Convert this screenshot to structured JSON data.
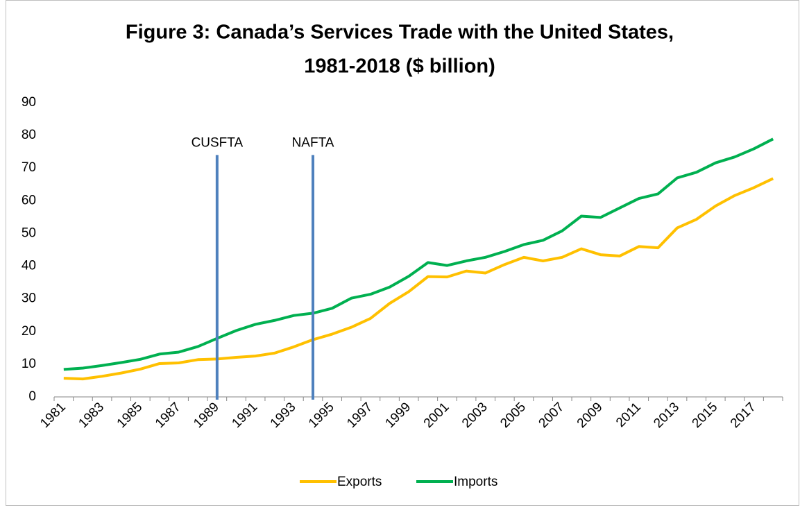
{
  "chart_data": {
    "type": "line",
    "title": [
      "Figure 3: Canada’s Services Trade with the United States,",
      "1981-2018 ($ billion)"
    ],
    "categories": [
      "1981",
      null,
      "1983",
      null,
      "1985",
      null,
      "1987",
      null,
      "1989",
      null,
      "1991",
      null,
      "1993",
      null,
      "1995",
      null,
      "1997",
      null,
      "1999",
      null,
      "2001",
      null,
      "2003",
      null,
      "2005",
      null,
      "2007",
      null,
      "2009",
      null,
      "2011",
      null,
      "2013",
      null,
      "2015",
      null,
      "2017",
      null
    ],
    "series": [
      {
        "name": "Exports",
        "color": "#ffc000",
        "values": [
          5.7,
          5.5,
          6.3,
          7.3,
          8.5,
          10.2,
          10.4,
          11.4,
          11.6,
          12.1,
          12.5,
          13.4,
          15.3,
          17.5,
          19.2,
          21.3,
          24.0,
          28.6,
          32.2,
          36.8,
          36.7,
          38.5,
          37.9,
          40.5,
          42.7,
          41.6,
          42.7,
          45.3,
          43.5,
          43.1,
          46.0,
          45.6,
          51.7,
          54.3,
          58.4,
          61.6,
          64.0,
          66.8
        ]
      },
      {
        "name": "Imports",
        "color": "#00b050",
        "values": [
          8.4,
          8.8,
          9.6,
          10.5,
          11.5,
          13.1,
          13.7,
          15.4,
          17.9,
          20.3,
          22.2,
          23.4,
          24.9,
          25.6,
          27.1,
          30.2,
          31.4,
          33.6,
          36.9,
          41.1,
          40.2,
          41.6,
          42.7,
          44.5,
          46.6,
          47.9,
          50.8,
          55.3,
          54.9,
          57.8,
          60.7,
          62.1,
          67.0,
          68.7,
          71.6,
          73.4,
          75.9,
          78.9
        ]
      }
    ],
    "annotations": [
      {
        "label": "CUSFTA",
        "x": 1989,
        "y_top": 74,
        "color": "#4f81bd"
      },
      {
        "label": "NAFTA",
        "x": 1994,
        "y_top": 74,
        "color": "#4f81bd"
      }
    ],
    "ylim": [
      0,
      90
    ],
    "yticks": [
      0,
      10,
      20,
      30,
      40,
      50,
      60,
      70,
      80,
      90
    ],
    "legend": "bottom"
  }
}
